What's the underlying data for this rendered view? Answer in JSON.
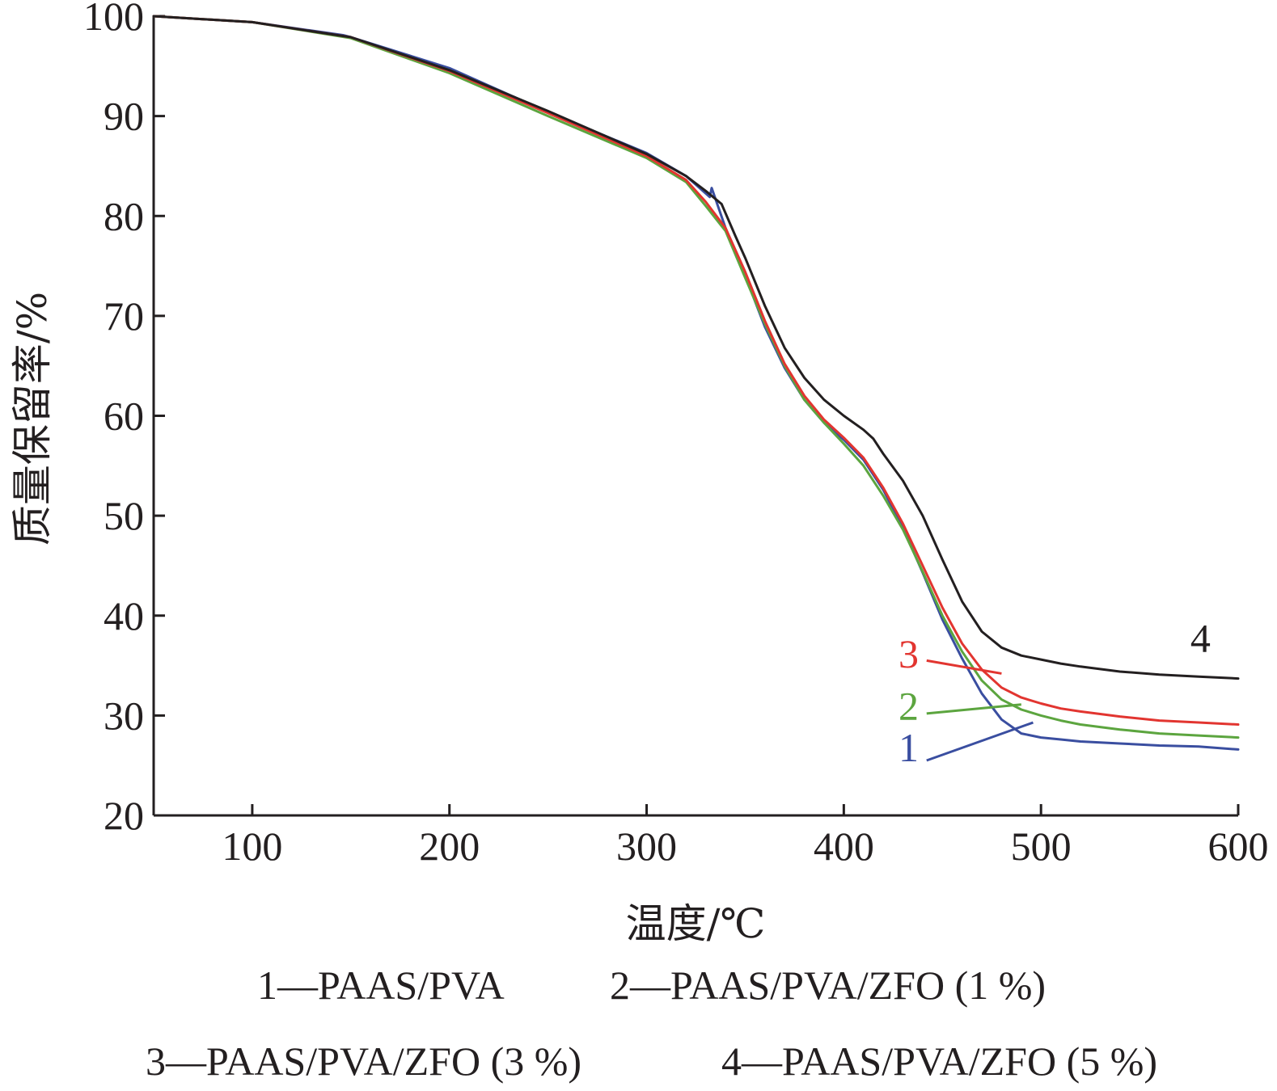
{
  "chart_data": {
    "type": "line",
    "xlabel": "温度/℃",
    "ylabel": "质量保留率/%",
    "xlim": [
      50,
      600
    ],
    "ylim": [
      20,
      100
    ],
    "x_ticks": [
      100,
      200,
      300,
      400,
      500,
      600
    ],
    "y_ticks": [
      20,
      30,
      40,
      50,
      60,
      70,
      80,
      90,
      100
    ],
    "grid": false,
    "series": [
      {
        "name": "1—PAAS/PVA",
        "label": "1",
        "color": "#3a4ea0",
        "x": [
          50,
          100,
          146,
          150,
          200,
          250,
          300,
          320,
          332,
          333,
          340,
          350,
          360,
          370,
          380,
          390,
          400,
          410,
          420,
          430,
          440,
          450,
          460,
          470,
          480,
          490,
          500,
          510,
          520,
          540,
          560,
          580,
          600
        ],
        "y": [
          100,
          99.4,
          98.1,
          97.9,
          94.8,
          90.4,
          86.3,
          84.0,
          81.9,
          82.8,
          78.8,
          74.0,
          68.9,
          64.8,
          61.6,
          59.3,
          57.6,
          55.6,
          52.6,
          48.8,
          44.3,
          39.6,
          35.7,
          32.2,
          29.6,
          28.2,
          27.8,
          27.6,
          27.4,
          27.2,
          27.0,
          26.9,
          26.6
        ]
      },
      {
        "name": "2—PAAS/PVA/ZFO (1 %)",
        "label": "2",
        "color": "#5ca53f",
        "x": [
          50,
          100,
          150,
          200,
          250,
          300,
          320,
          330,
          340,
          350,
          360,
          370,
          380,
          390,
          400,
          410,
          420,
          430,
          440,
          450,
          460,
          470,
          480,
          490,
          500,
          510,
          520,
          540,
          560,
          580,
          600
        ],
        "y": [
          100,
          99.4,
          97.8,
          94.3,
          90.0,
          85.8,
          83.4,
          81.0,
          78.5,
          73.8,
          69.2,
          65.0,
          61.6,
          59.3,
          57.2,
          55.0,
          52.0,
          48.6,
          44.4,
          40.0,
          36.4,
          33.5,
          31.6,
          30.6,
          30.0,
          29.5,
          29.1,
          28.6,
          28.2,
          28.0,
          27.8
        ]
      },
      {
        "name": "3—PAAS/PVA/ZFO (3 %)",
        "label": "3",
        "color": "#e23530",
        "x": [
          50,
          100,
          150,
          200,
          250,
          300,
          320,
          330,
          340,
          350,
          360,
          370,
          380,
          390,
          400,
          410,
          420,
          430,
          440,
          450,
          460,
          470,
          480,
          490,
          500,
          510,
          520,
          540,
          560,
          580,
          600
        ],
        "y": [
          100,
          99.4,
          97.9,
          94.5,
          90.3,
          86.0,
          83.6,
          81.4,
          78.8,
          74.4,
          69.5,
          65.2,
          62.0,
          59.6,
          57.8,
          55.8,
          52.8,
          49.2,
          45.0,
          40.8,
          37.2,
          34.6,
          32.8,
          31.8,
          31.2,
          30.7,
          30.4,
          29.9,
          29.5,
          29.3,
          29.1
        ]
      },
      {
        "name": "4—PAAS/PVA/ZFO (5 %)",
        "label": "4",
        "color": "#231f20",
        "x": [
          50,
          100,
          150,
          200,
          250,
          300,
          320,
          330,
          338,
          345,
          350,
          360,
          370,
          380,
          390,
          400,
          410,
          415,
          420,
          430,
          440,
          450,
          460,
          470,
          480,
          490,
          500,
          510,
          520,
          540,
          560,
          580,
          600
        ],
        "y": [
          100,
          99.4,
          97.9,
          94.6,
          90.5,
          86.2,
          84.0,
          82.5,
          81.2,
          78.0,
          75.8,
          71.0,
          66.8,
          63.8,
          61.6,
          60.0,
          58.6,
          57.7,
          56.2,
          53.5,
          50.0,
          45.6,
          41.4,
          38.4,
          36.8,
          36.0,
          35.6,
          35.2,
          34.9,
          34.4,
          34.1,
          33.9,
          33.7
        ]
      }
    ],
    "annotations": [
      {
        "text": "1",
        "x_text": 438,
        "y_text": 25.4,
        "x_line": [
          442,
          496
        ],
        "y_line": [
          25.5,
          29.3
        ],
        "color": "#3a4ea0"
      },
      {
        "text": "2",
        "x_text": 438,
        "y_text": 29.6,
        "x_line": [
          442,
          490
        ],
        "y_line": [
          30.2,
          31.1
        ],
        "color": "#5ca53f"
      },
      {
        "text": "3",
        "x_text": 438,
        "y_text": 34.8,
        "x_line": [
          442,
          480
        ],
        "y_line": [
          35.5,
          34.2
        ],
        "color": "#e23530"
      },
      {
        "text": "4",
        "x_text": 586,
        "y_text": 36.4,
        "color": "#231f20"
      }
    ],
    "legend": {
      "placement": "bottom",
      "rows": [
        [
          "1—PAAS/PVA",
          "2—PAAS/PVA/ZFO (1 %)"
        ],
        [
          "3—PAAS/PVA/ZFO (3 %)",
          "4—PAAS/PVA/ZFO (5 %)"
        ]
      ]
    }
  }
}
